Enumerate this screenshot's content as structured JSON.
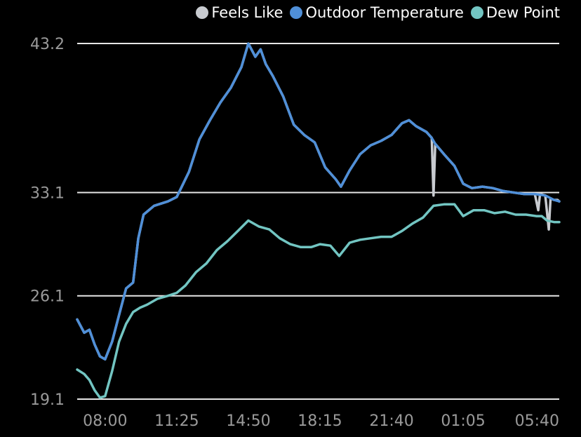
{
  "chart_data": {
    "type": "line",
    "title": "",
    "xlabel": "",
    "ylabel": "",
    "x_start": "06:40",
    "x_end": "05:40",
    "x_ticks": [
      "08:00",
      "11:25",
      "14:50",
      "18:15",
      "21:40",
      "01:05",
      "05:40"
    ],
    "y_ticks": [
      "43.2",
      "33.1",
      "26.1",
      "19.1"
    ],
    "ylim": [
      19.1,
      43.2
    ],
    "grid": true,
    "legend_position": "top-right",
    "series": [
      {
        "name": "Feels Like",
        "color": "#c8cbd0",
        "points": [
          [
            "06:40",
            24.5
          ],
          [
            "07:00",
            23.6
          ],
          [
            "07:15",
            23.8
          ],
          [
            "07:30",
            22.8
          ],
          [
            "07:45",
            22.0
          ],
          [
            "08:00",
            21.8
          ],
          [
            "08:20",
            23.0
          ],
          [
            "08:40",
            24.8
          ],
          [
            "09:00",
            26.6
          ],
          [
            "09:20",
            27.0
          ],
          [
            "09:35",
            30.0
          ],
          [
            "09:50",
            31.6
          ],
          [
            "10:20",
            32.2
          ],
          [
            "11:00",
            32.5
          ],
          [
            "11:25",
            32.8
          ],
          [
            "12:00",
            34.5
          ],
          [
            "12:30",
            36.7
          ],
          [
            "13:00",
            38.0
          ],
          [
            "13:30",
            39.2
          ],
          [
            "14:00",
            40.2
          ],
          [
            "14:30",
            41.6
          ],
          [
            "14:50",
            43.2
          ],
          [
            "15:10",
            42.3
          ],
          [
            "15:25",
            42.8
          ],
          [
            "15:40",
            41.8
          ],
          [
            "16:00",
            41.0
          ],
          [
            "16:30",
            39.6
          ],
          [
            "17:00",
            37.7
          ],
          [
            "17:30",
            37.0
          ],
          [
            "18:00",
            36.5
          ],
          [
            "18:30",
            34.8
          ],
          [
            "19:00",
            34.0
          ],
          [
            "19:15",
            33.5
          ],
          [
            "19:40",
            34.6
          ],
          [
            "20:10",
            35.7
          ],
          [
            "20:40",
            36.3
          ],
          [
            "21:10",
            36.6
          ],
          [
            "21:40",
            37.0
          ],
          [
            "22:10",
            37.8
          ],
          [
            "22:30",
            38.0
          ],
          [
            "22:50",
            37.6
          ],
          [
            "23:20",
            37.2
          ],
          [
            "23:35",
            36.8
          ],
          [
            "23:40",
            32.9
          ],
          [
            "23:45",
            36.4
          ],
          [
            "00:10",
            35.7
          ],
          [
            "00:40",
            34.9
          ],
          [
            "01:05",
            33.7
          ],
          [
            "01:30",
            33.4
          ],
          [
            "02:00",
            33.5
          ],
          [
            "02:30",
            33.4
          ],
          [
            "03:00",
            33.2
          ],
          [
            "04:00",
            33.0
          ],
          [
            "04:30",
            33.0
          ],
          [
            "04:40",
            31.9
          ],
          [
            "04:45",
            33.0
          ],
          [
            "05:00",
            32.9
          ],
          [
            "05:10",
            30.6
          ],
          [
            "05:15",
            32.7
          ],
          [
            "05:25",
            32.6
          ],
          [
            "05:35",
            32.6
          ],
          [
            "05:40",
            32.5
          ]
        ]
      },
      {
        "name": "Outdoor Temperature",
        "color": "#4f8fd8",
        "points": [
          [
            "06:40",
            24.5
          ],
          [
            "07:00",
            23.6
          ],
          [
            "07:15",
            23.8
          ],
          [
            "07:30",
            22.8
          ],
          [
            "07:45",
            22.0
          ],
          [
            "08:00",
            21.8
          ],
          [
            "08:20",
            23.0
          ],
          [
            "08:40",
            24.8
          ],
          [
            "09:00",
            26.6
          ],
          [
            "09:20",
            27.0
          ],
          [
            "09:35",
            30.0
          ],
          [
            "09:50",
            31.6
          ],
          [
            "10:20",
            32.2
          ],
          [
            "11:00",
            32.5
          ],
          [
            "11:25",
            32.8
          ],
          [
            "12:00",
            34.5
          ],
          [
            "12:30",
            36.7
          ],
          [
            "13:00",
            38.0
          ],
          [
            "13:30",
            39.2
          ],
          [
            "14:00",
            40.2
          ],
          [
            "14:30",
            41.6
          ],
          [
            "14:50",
            43.2
          ],
          [
            "15:10",
            42.3
          ],
          [
            "15:25",
            42.8
          ],
          [
            "15:40",
            41.8
          ],
          [
            "16:00",
            41.0
          ],
          [
            "16:30",
            39.6
          ],
          [
            "17:00",
            37.7
          ],
          [
            "17:30",
            37.0
          ],
          [
            "18:00",
            36.5
          ],
          [
            "18:30",
            34.8
          ],
          [
            "19:00",
            34.0
          ],
          [
            "19:15",
            33.5
          ],
          [
            "19:40",
            34.6
          ],
          [
            "20:10",
            35.7
          ],
          [
            "20:40",
            36.3
          ],
          [
            "21:10",
            36.6
          ],
          [
            "21:40",
            37.0
          ],
          [
            "22:10",
            37.8
          ],
          [
            "22:30",
            38.0
          ],
          [
            "22:50",
            37.6
          ],
          [
            "23:20",
            37.2
          ],
          [
            "23:35",
            36.8
          ],
          [
            "23:45",
            36.4
          ],
          [
            "00:10",
            35.7
          ],
          [
            "00:40",
            34.9
          ],
          [
            "01:05",
            33.7
          ],
          [
            "01:30",
            33.4
          ],
          [
            "02:00",
            33.5
          ],
          [
            "02:30",
            33.4
          ],
          [
            "03:00",
            33.2
          ],
          [
            "04:00",
            33.0
          ],
          [
            "04:30",
            33.0
          ],
          [
            "05:00",
            32.9
          ],
          [
            "05:25",
            32.6
          ],
          [
            "05:40",
            32.5
          ]
        ]
      },
      {
        "name": "Dew Point",
        "color": "#72c5c2",
        "points": [
          [
            "06:40",
            21.1
          ],
          [
            "07:00",
            20.8
          ],
          [
            "07:15",
            20.4
          ],
          [
            "07:30",
            19.7
          ],
          [
            "07:45",
            19.2
          ],
          [
            "08:00",
            19.3
          ],
          [
            "08:20",
            21.0
          ],
          [
            "08:40",
            23.0
          ],
          [
            "09:00",
            24.2
          ],
          [
            "09:20",
            25.0
          ],
          [
            "09:40",
            25.3
          ],
          [
            "10:00",
            25.5
          ],
          [
            "10:30",
            25.9
          ],
          [
            "11:00",
            26.1
          ],
          [
            "11:25",
            26.3
          ],
          [
            "11:50",
            26.8
          ],
          [
            "12:20",
            27.7
          ],
          [
            "12:50",
            28.3
          ],
          [
            "13:20",
            29.2
          ],
          [
            "13:50",
            29.8
          ],
          [
            "14:20",
            30.5
          ],
          [
            "14:50",
            31.2
          ],
          [
            "15:20",
            30.8
          ],
          [
            "15:50",
            30.6
          ],
          [
            "16:20",
            30.0
          ],
          [
            "16:50",
            29.6
          ],
          [
            "17:20",
            29.4
          ],
          [
            "17:50",
            29.4
          ],
          [
            "18:15",
            29.6
          ],
          [
            "18:45",
            29.5
          ],
          [
            "19:10",
            28.8
          ],
          [
            "19:40",
            29.7
          ],
          [
            "20:10",
            29.9
          ],
          [
            "20:40",
            30.0
          ],
          [
            "21:10",
            30.1
          ],
          [
            "21:40",
            30.1
          ],
          [
            "22:10",
            30.5
          ],
          [
            "22:40",
            31.0
          ],
          [
            "23:10",
            31.4
          ],
          [
            "23:40",
            32.2
          ],
          [
            "00:10",
            32.3
          ],
          [
            "00:40",
            32.3
          ],
          [
            "01:05",
            31.5
          ],
          [
            "01:35",
            31.9
          ],
          [
            "02:05",
            31.9
          ],
          [
            "02:35",
            31.7
          ],
          [
            "03:05",
            31.8
          ],
          [
            "03:35",
            31.6
          ],
          [
            "04:05",
            31.6
          ],
          [
            "04:35",
            31.5
          ],
          [
            "04:50",
            31.5
          ],
          [
            "05:05",
            31.2
          ],
          [
            "05:25",
            31.1
          ],
          [
            "05:40",
            31.1
          ]
        ]
      }
    ]
  }
}
